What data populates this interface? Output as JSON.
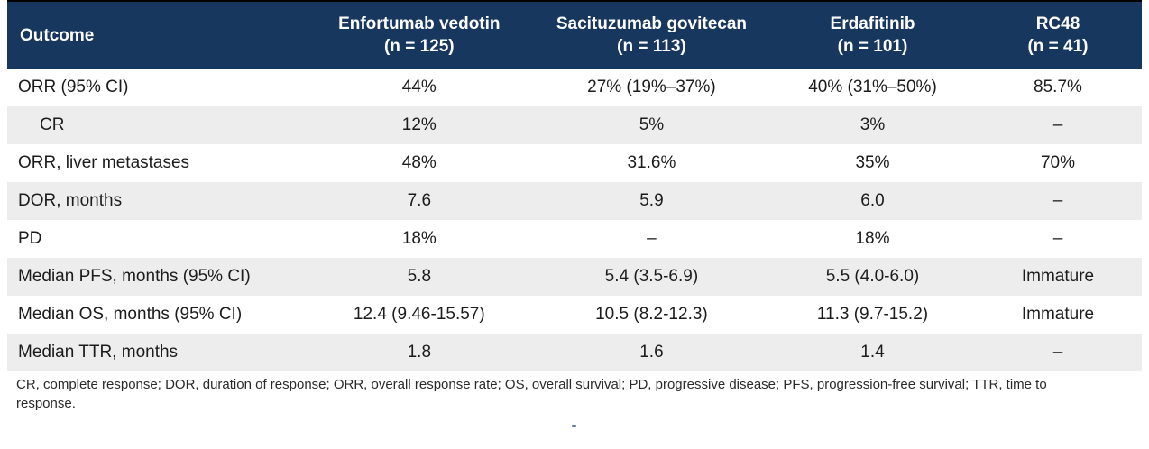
{
  "colors": {
    "header_bg": "#17375E",
    "header_text": "#FFFFFF",
    "row_stripe": "#EDEDED",
    "body_text": "#1C1C1C"
  },
  "table": {
    "header": {
      "outcome_label": "Outcome",
      "columns": [
        {
          "drug": "Enfortumab vedotin",
          "n": "(n = 125)"
        },
        {
          "drug": "Sacituzumab govitecan",
          "n": "(n = 113)"
        },
        {
          "drug": "Erdafitinib",
          "n": "(n = 101)"
        },
        {
          "drug": "RC48",
          "n": "(n = 41)"
        }
      ]
    },
    "rows": [
      {
        "outcome": "ORR (95% CI)",
        "indent": false,
        "values": [
          "44%",
          "27% (19%–37%)",
          "40% (31%–50%)",
          "85.7%"
        ]
      },
      {
        "outcome": "CR",
        "indent": true,
        "values": [
          "12%",
          "5%",
          "3%",
          "–"
        ]
      },
      {
        "outcome": "ORR, liver metastases",
        "indent": false,
        "values": [
          "48%",
          "31.6%",
          "35%",
          "70%"
        ]
      },
      {
        "outcome": "DOR, months",
        "indent": false,
        "values": [
          "7.6",
          "5.9",
          "6.0",
          "–"
        ]
      },
      {
        "outcome": "PD",
        "indent": false,
        "values": [
          "18%",
          "–",
          "18%",
          "–"
        ]
      },
      {
        "outcome": "Median PFS, months (95% CI)",
        "indent": false,
        "values": [
          "5.8",
          "5.4 (3.5-6.9)",
          "5.5 (4.0-6.0)",
          "Immature"
        ]
      },
      {
        "outcome": "Median OS, months (95% CI)",
        "indent": false,
        "values": [
          "12.4 (9.46-15.57)",
          "10.5 (8.2-12.3)",
          "11.3 (9.7-15.2)",
          "Immature"
        ]
      },
      {
        "outcome": "Median TTR, months",
        "indent": false,
        "values": [
          "1.8",
          "1.6",
          "1.4",
          "–"
        ]
      }
    ]
  },
  "footnote": "CR, complete response; DOR, duration of response; ORR, overall response rate; OS, overall survival; PD, progressive disease; PFS, progression-free survival; TTR, time to response."
}
